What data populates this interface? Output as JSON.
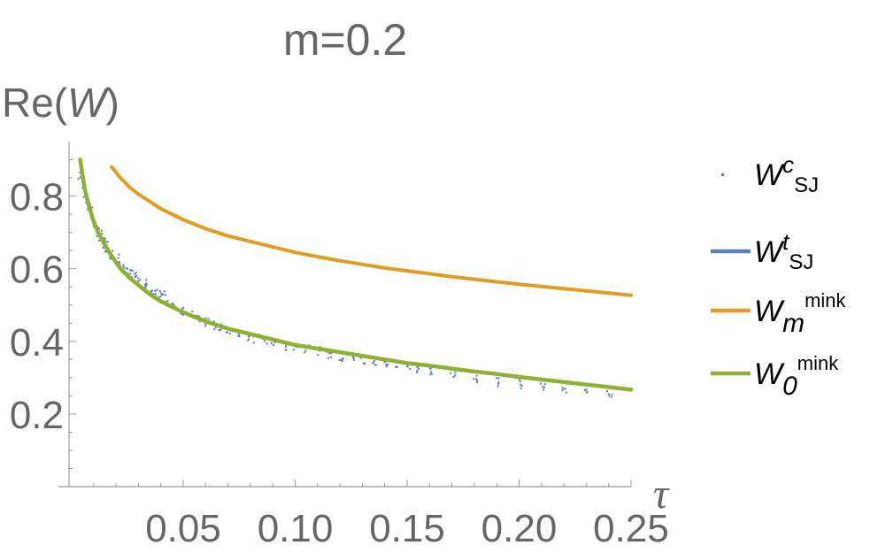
{
  "chart_data": {
    "type": "scatter",
    "title": "m=0.2",
    "ylabel_prefix": "Re(",
    "ylabel_var": "W",
    "ylabel_suffix": ")",
    "xlabel": "τ",
    "xlim": [
      -0.001,
      0.25
    ],
    "ylim": [
      0.0,
      0.95
    ],
    "x_ticks": [
      "0.05",
      "0.10",
      "0.15",
      "0.20",
      "0.25"
    ],
    "y_ticks": [
      "0.2",
      "0.4",
      "0.6",
      "0.8"
    ],
    "colors": {
      "scatter": "#5a7fb5",
      "wsj_t": "#5e81b5",
      "wm_mink": "#e19c24",
      "w0_mink": "#8fb032",
      "axis": "#999999",
      "text": "#666666"
    },
    "legend_position": "right",
    "legend": [
      {
        "base": "W",
        "sup": "c",
        "sub": "SJ",
        "style": "points",
        "color": "#5a7fb5"
      },
      {
        "base": "W",
        "sup": "t",
        "sub": "SJ",
        "style": "line",
        "color": "#5e81b5"
      },
      {
        "base": "W",
        "sub_italic": "m",
        "sup": "mink",
        "style": "line",
        "color": "#e19c24"
      },
      {
        "base": "W",
        "sub_italic": "0",
        "sup": "mink",
        "style": "line",
        "color": "#8fb032"
      }
    ],
    "series": [
      {
        "name": "W^c_SJ",
        "kind": "scatter",
        "x": [
          0.004,
          0.005,
          0.006,
          0.007,
          0.008,
          0.009,
          0.01,
          0.011,
          0.012,
          0.013,
          0.014,
          0.015,
          0.016,
          0.018,
          0.02,
          0.022,
          0.024,
          0.026,
          0.028,
          0.03,
          0.032,
          0.034,
          0.036,
          0.038,
          0.04,
          0.042,
          0.045,
          0.048,
          0.05,
          0.053,
          0.056,
          0.06,
          0.063,
          0.066,
          0.07,
          0.074,
          0.078,
          0.082,
          0.086,
          0.09,
          0.095,
          0.1,
          0.105,
          0.11,
          0.115,
          0.12,
          0.125,
          0.13,
          0.135,
          0.14,
          0.145,
          0.15,
          0.155,
          0.16,
          0.17,
          0.18,
          0.19,
          0.2,
          0.21,
          0.22,
          0.23,
          0.24
        ],
        "y": [
          0.86,
          0.83,
          0.8,
          0.78,
          0.76,
          0.74,
          0.72,
          0.71,
          0.7,
          0.69,
          0.68,
          0.67,
          0.66,
          0.64,
          0.63,
          0.61,
          0.6,
          0.59,
          0.58,
          0.57,
          0.56,
          0.55,
          0.54,
          0.535,
          0.53,
          0.52,
          0.505,
          0.49,
          0.485,
          0.475,
          0.465,
          0.455,
          0.445,
          0.44,
          0.43,
          0.42,
          0.415,
          0.41,
          0.405,
          0.4,
          0.39,
          0.385,
          0.38,
          0.375,
          0.365,
          0.36,
          0.355,
          0.35,
          0.345,
          0.34,
          0.335,
          0.33,
          0.325,
          0.32,
          0.31,
          0.3,
          0.29,
          0.285,
          0.28,
          0.27,
          0.265,
          0.26
        ]
      },
      {
        "name": "W^t_SJ",
        "kind": "line",
        "x": [
          0.004,
          0.006,
          0.008,
          0.01,
          0.012,
          0.015,
          0.018,
          0.022,
          0.026,
          0.03,
          0.035,
          0.04,
          0.045,
          0.05,
          0.06,
          0.07,
          0.08,
          0.09,
          0.1,
          0.11,
          0.12,
          0.13,
          0.14,
          0.15,
          0.16,
          0.17,
          0.18,
          0.19,
          0.2,
          0.21,
          0.22,
          0.23,
          0.24,
          0.25
        ],
        "y": [
          0.9,
          0.82,
          0.77,
          0.73,
          0.7,
          0.665,
          0.635,
          0.6,
          0.575,
          0.555,
          0.53,
          0.51,
          0.495,
          0.48,
          0.455,
          0.435,
          0.42,
          0.405,
          0.39,
          0.38,
          0.37,
          0.36,
          0.35,
          0.34,
          0.333,
          0.325,
          0.317,
          0.31,
          0.302,
          0.295,
          0.288,
          0.281,
          0.274,
          0.267
        ]
      },
      {
        "name": "W_m^mink",
        "kind": "line",
        "x": [
          0.018,
          0.022,
          0.026,
          0.03,
          0.035,
          0.04,
          0.045,
          0.05,
          0.06,
          0.07,
          0.08,
          0.09,
          0.1,
          0.11,
          0.12,
          0.13,
          0.14,
          0.15,
          0.16,
          0.17,
          0.18,
          0.19,
          0.2,
          0.21,
          0.22,
          0.23,
          0.24,
          0.25
        ],
        "y": [
          0.88,
          0.85,
          0.825,
          0.805,
          0.785,
          0.765,
          0.75,
          0.735,
          0.71,
          0.69,
          0.675,
          0.66,
          0.645,
          0.633,
          0.622,
          0.612,
          0.602,
          0.594,
          0.586,
          0.578,
          0.571,
          0.564,
          0.557,
          0.551,
          0.545,
          0.539,
          0.533,
          0.527
        ]
      },
      {
        "name": "W_0^mink",
        "kind": "line",
        "x": [
          0.004,
          0.006,
          0.008,
          0.01,
          0.012,
          0.015,
          0.018,
          0.022,
          0.026,
          0.03,
          0.035,
          0.04,
          0.045,
          0.05,
          0.06,
          0.07,
          0.08,
          0.09,
          0.1,
          0.11,
          0.12,
          0.13,
          0.14,
          0.15,
          0.16,
          0.17,
          0.18,
          0.19,
          0.2,
          0.21,
          0.22,
          0.23,
          0.24,
          0.25
        ],
        "y": [
          0.9,
          0.82,
          0.77,
          0.73,
          0.7,
          0.665,
          0.635,
          0.6,
          0.575,
          0.555,
          0.53,
          0.51,
          0.495,
          0.48,
          0.455,
          0.435,
          0.42,
          0.405,
          0.39,
          0.38,
          0.37,
          0.36,
          0.35,
          0.34,
          0.333,
          0.325,
          0.317,
          0.31,
          0.302,
          0.295,
          0.288,
          0.281,
          0.274,
          0.267
        ]
      }
    ]
  }
}
